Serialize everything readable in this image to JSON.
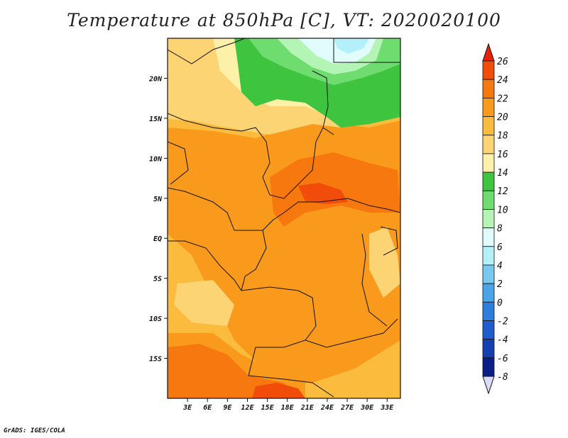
{
  "title": "Temperature at 850hPa [C], VT: 2020020100",
  "footer": "GrADS: IGES/COLA",
  "map": {
    "lon_range": [
      0,
      35
    ],
    "lat_range": [
      -20,
      25
    ],
    "lon_ticks": [
      {
        "value": 3,
        "label": "3E"
      },
      {
        "value": 6,
        "label": "6E"
      },
      {
        "value": 9,
        "label": "9E"
      },
      {
        "value": 12,
        "label": "12E"
      },
      {
        "value": 15,
        "label": "15E"
      },
      {
        "value": 18,
        "label": "18E"
      },
      {
        "value": 21,
        "label": "21E"
      },
      {
        "value": 24,
        "label": "24E"
      },
      {
        "value": 27,
        "label": "27E"
      },
      {
        "value": 30,
        "label": "30E"
      },
      {
        "value": 33,
        "label": "33E"
      }
    ],
    "lat_ticks": [
      {
        "value": 20,
        "label": "20N"
      },
      {
        "value": 15,
        "label": "15N"
      },
      {
        "value": 10,
        "label": "10N"
      },
      {
        "value": 5,
        "label": "5N"
      },
      {
        "value": 0,
        "label": "EQ"
      },
      {
        "value": -5,
        "label": "5S"
      },
      {
        "value": -10,
        "label": "10S"
      },
      {
        "value": -15,
        "label": "15S"
      }
    ]
  },
  "colorbar": {
    "levels": [
      26,
      24,
      22,
      20,
      18,
      16,
      14,
      12,
      10,
      8,
      6,
      4,
      2,
      0,
      -2,
      -4,
      -6,
      -8
    ],
    "labels": [
      "26",
      "24",
      "22",
      "20",
      "18",
      "16",
      "14",
      "12",
      "10",
      "8",
      "6",
      "4",
      "2",
      "0",
      "-2",
      "-4",
      "-6",
      "-8"
    ],
    "colors_top_to_bottom": [
      "#e8220a",
      "#f24c0a",
      "#f7780f",
      "#f99a1c",
      "#fbbb3c",
      "#fcd474",
      "#fdf0a8",
      "#3ec43e",
      "#6fdc6f",
      "#b4f4b4",
      "#e0fcfc",
      "#b4f0fa",
      "#78c8f0",
      "#4aa4ea",
      "#2e7ee0",
      "#1f5cd0",
      "#173fb4",
      "#0b1f8a",
      "#0a0a60"
    ],
    "under_color": "#dcdcf8"
  }
}
